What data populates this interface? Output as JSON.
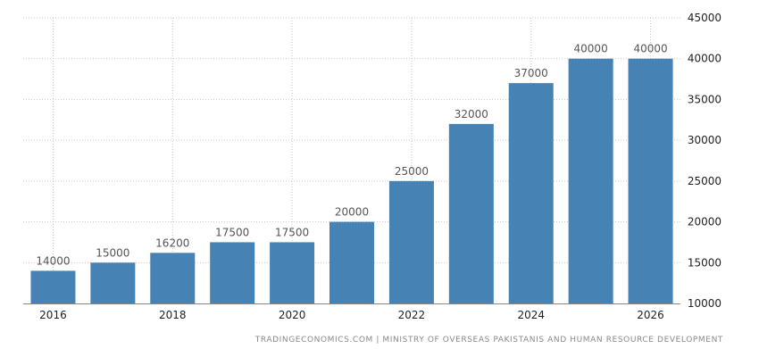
{
  "chart_data": {
    "type": "bar",
    "categories": [
      "2016",
      "2017",
      "2018",
      "2019",
      "2020",
      "2021",
      "2022",
      "2023",
      "2024",
      "2025",
      "2026"
    ],
    "values": [
      14000,
      15000,
      16200,
      17500,
      17500,
      20000,
      25000,
      32000,
      37000,
      40000,
      40000
    ],
    "x_tick_labels": [
      "2016",
      "",
      "2018",
      "",
      "2020",
      "",
      "2022",
      "",
      "2024",
      "",
      "2026"
    ],
    "y_ticks": [
      10000,
      15000,
      20000,
      25000,
      30000,
      35000,
      40000,
      45000
    ],
    "ylim": [
      10000,
      45000
    ],
    "grid": true,
    "y_axis_side": "right",
    "bar_color": "#4682b4"
  },
  "source": "TRADINGECONOMICS.COM | MINISTRY OF OVERSEAS PAKISTANIS AND HUMAN RESOURCE DEVELOPMENT"
}
